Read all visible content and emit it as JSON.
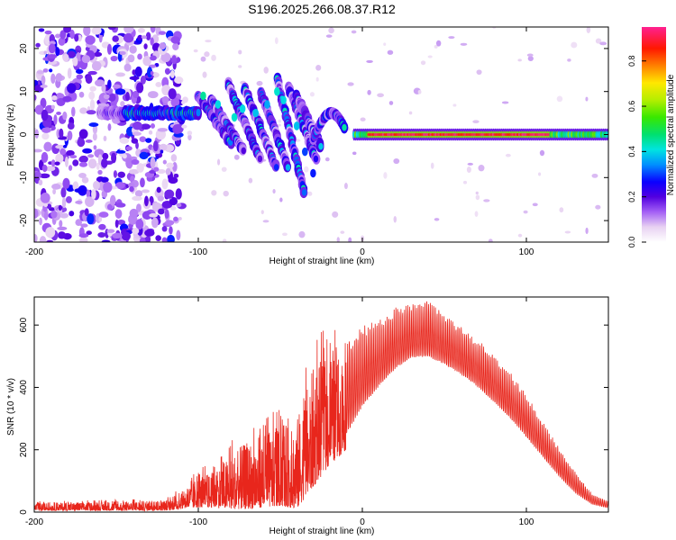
{
  "title": "S196.2025.266.08.37.R12",
  "colors": {
    "snr_line": "#e8261c",
    "frame": "#000000",
    "background": "#ffffff"
  },
  "chart_data": [
    {
      "type": "heatmap",
      "name": "spectrogram",
      "xlabel": "Height of straight line (km)",
      "ylabel": "Frequency (Hz)",
      "xlim": [
        -200,
        150
      ],
      "ylim": [
        -25,
        25
      ],
      "xticks": [
        -200,
        -100,
        0,
        100
      ],
      "xtick_labels": [
        "-200",
        "-100",
        "0",
        "100"
      ],
      "yticks": [
        -20,
        -10,
        0,
        10,
        20
      ],
      "ytick_labels": [
        "-20",
        "-10",
        "0",
        "10",
        "20"
      ],
      "colorbar": {
        "label": "Normalized spectral amplitude",
        "range": [
          0.0,
          0.95
        ],
        "ticks": [
          0.0,
          0.2,
          0.4,
          0.6,
          0.8
        ],
        "tick_labels": [
          "0.0",
          "0.2",
          "0.4",
          "0.6",
          "0.8"
        ]
      },
      "features": [
        {
          "name": "noise-field",
          "x_range": [
            -200,
            -110
          ],
          "freq_range": [
            -25,
            25
          ],
          "amplitude": 0.15
        },
        {
          "name": "flat-segment",
          "x_range": [
            -160,
            -100
          ],
          "freq": 5,
          "amplitude": [
            0.15,
            0.55
          ]
        },
        {
          "name": "striations",
          "x_range": [
            -100,
            -30
          ],
          "freq_range": [
            -14,
            14
          ],
          "amplitude": [
            0.15,
            0.45
          ]
        },
        {
          "name": "rising-branch",
          "x_range": [
            -30,
            -10
          ],
          "freq_range": [
            -1,
            5
          ],
          "amplitude": [
            0.2,
            0.5
          ]
        },
        {
          "name": "carrier-line",
          "x_range": [
            -5,
            150
          ],
          "freq": 0,
          "amplitude": [
            0.4,
            0.95
          ]
        }
      ]
    },
    {
      "type": "line",
      "name": "snr",
      "xlabel": "Height of straight line (km)",
      "ylabel": "SNR (10 * v/v)",
      "xlim": [
        -200,
        150
      ],
      "ylim": [
        0,
        690
      ],
      "xticks": [
        -200,
        -100,
        0,
        100
      ],
      "xtick_labels": [
        "-200",
        "-100",
        "0",
        "100"
      ],
      "yticks": [
        0,
        200,
        400,
        600
      ],
      "ytick_labels": [
        "0",
        "200",
        "400",
        "600"
      ],
      "series": [
        {
          "name": "SNR",
          "x": [
            -200,
            -150,
            -120,
            -110,
            -100,
            -90,
            -80,
            -70,
            -60,
            -50,
            -40,
            -30,
            -20,
            -10,
            0,
            10,
            20,
            30,
            40,
            50,
            60,
            70,
            80,
            90,
            100,
            110,
            120,
            130,
            140,
            150
          ],
          "envelope_max": [
            35,
            40,
            45,
            80,
            140,
            160,
            230,
            280,
            310,
            330,
            370,
            560,
            600,
            560,
            600,
            620,
            660,
            670,
            690,
            640,
            600,
            560,
            510,
            450,
            380,
            290,
            210,
            130,
            60,
            35
          ],
          "envelope_min": [
            5,
            5,
            5,
            10,
            15,
            15,
            10,
            10,
            15,
            20,
            10,
            80,
            150,
            200,
            300,
            370,
            430,
            470,
            470,
            450,
            420,
            380,
            330,
            280,
            220,
            160,
            100,
            50,
            20,
            10
          ]
        }
      ]
    }
  ]
}
